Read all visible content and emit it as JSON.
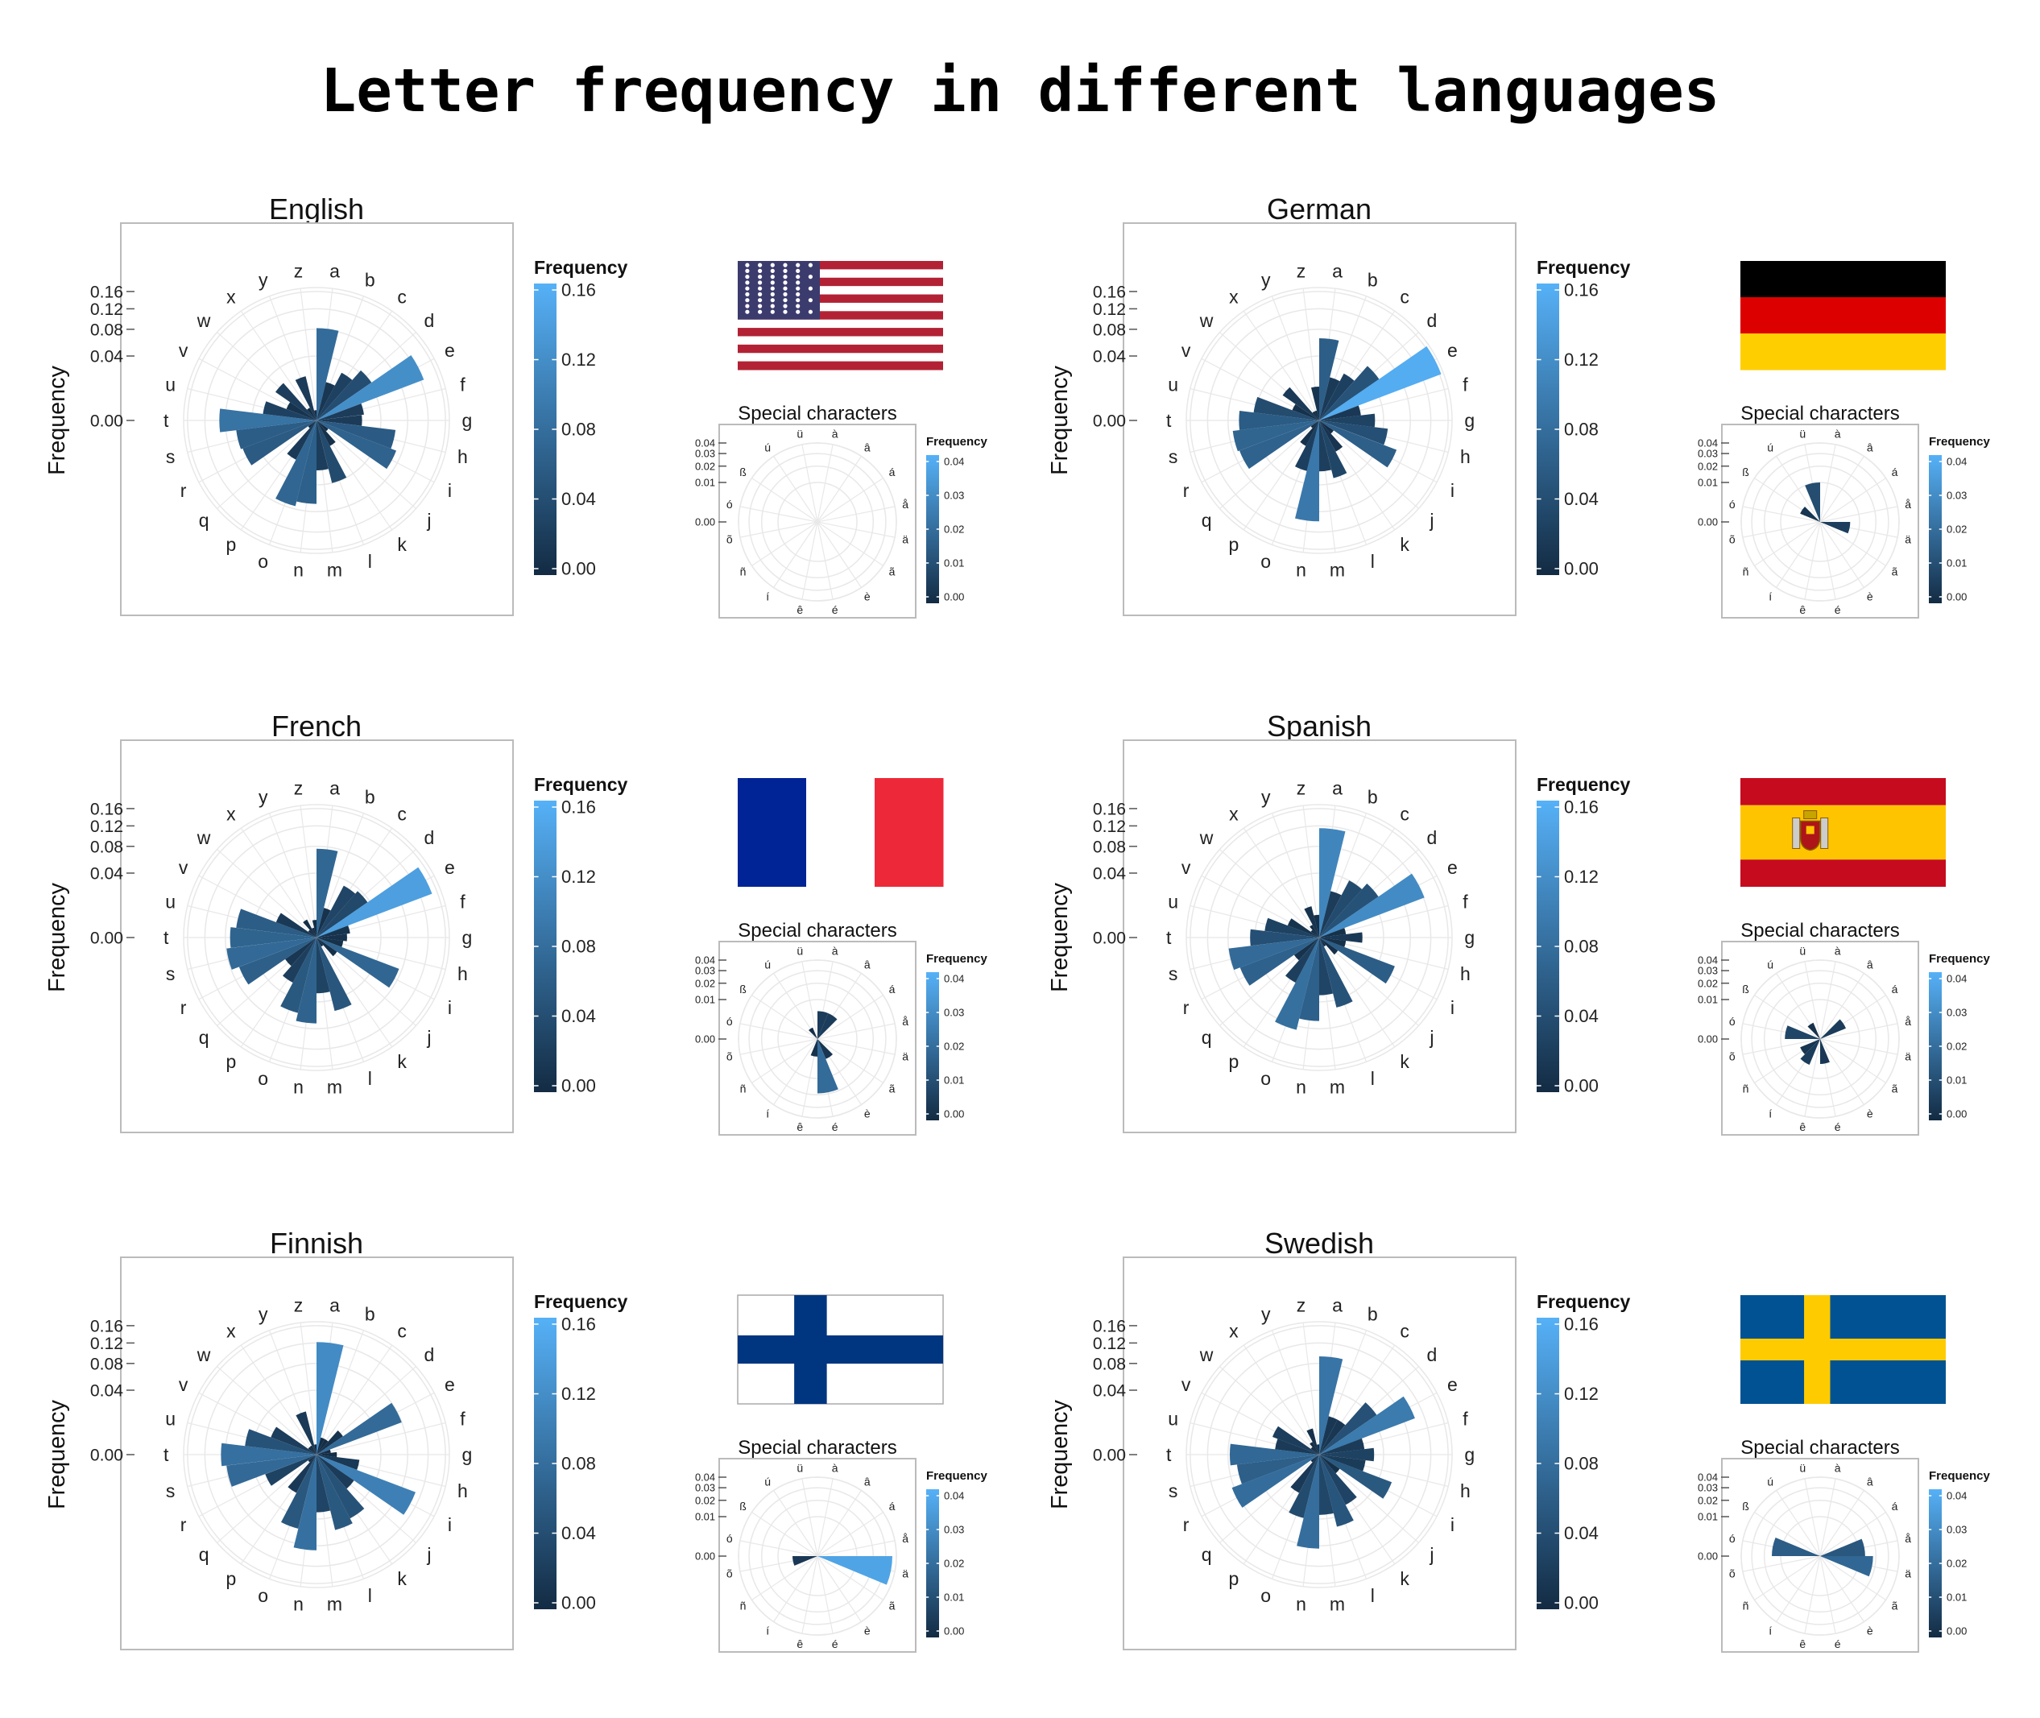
{
  "title": "Letter frequency in different languages",
  "letters": [
    "a",
    "b",
    "c",
    "d",
    "e",
    "f",
    "g",
    "h",
    "i",
    "j",
    "k",
    "l",
    "m",
    "n",
    "o",
    "p",
    "q",
    "r",
    "s",
    "t",
    "u",
    "v",
    "w",
    "x",
    "y",
    "z"
  ],
  "special_letters": [
    "à",
    "â",
    "á",
    "å",
    "ä",
    "ã",
    "è",
    "é",
    "ê",
    "í",
    "ñ",
    "õ",
    "ó",
    "ß",
    "ú",
    "ü"
  ],
  "labels": {
    "radial_axis": "Frequency",
    "legend_title": "Frequency",
    "special_title": "Special characters",
    "r_ticks": [
      "0.00",
      "0.04",
      "0.08",
      "0.12",
      "0.16"
    ],
    "legend_ticks": [
      "0.00",
      "0.04",
      "0.08",
      "0.12",
      "0.16"
    ],
    "special_r_ticks": [
      "0.00",
      "0.01",
      "0.02",
      "0.03",
      "0.04"
    ],
    "special_legend_ticks": [
      "0.00",
      "0.01",
      "0.02",
      "0.03",
      "0.04"
    ]
  },
  "colors": {
    "low": "#132B43",
    "high": "#56B1F7",
    "grid": "#e8e8e8",
    "panel_border": "#bbbbbb"
  },
  "chart_data": [
    {
      "type": "polar-bar",
      "language": "English",
      "flag": "usa-flag",
      "ylim": [
        0,
        0.17
      ],
      "letters": [
        0.082,
        0.015,
        0.028,
        0.043,
        0.127,
        0.022,
        0.02,
        0.061,
        0.07,
        0.002,
        0.008,
        0.04,
        0.024,
        0.067,
        0.075,
        0.019,
        0.001,
        0.06,
        0.063,
        0.091,
        0.028,
        0.01,
        0.024,
        0.002,
        0.02,
        0.001
      ],
      "special": [
        0,
        0,
        0,
        0,
        0,
        0,
        0,
        0,
        0,
        0,
        0,
        0,
        0,
        0,
        0,
        0
      ]
    },
    {
      "type": "polar-bar",
      "language": "German",
      "flag": "germany-flag",
      "ylim": [
        0,
        0.17
      ],
      "letters": [
        0.065,
        0.019,
        0.027,
        0.051,
        0.164,
        0.017,
        0.03,
        0.046,
        0.066,
        0.003,
        0.012,
        0.034,
        0.025,
        0.098,
        0.026,
        0.008,
        0.001,
        0.07,
        0.073,
        0.062,
        0.042,
        0.008,
        0.019,
        0.001,
        0.001,
        0.011
      ],
      "special": [
        0,
        0,
        0,
        0,
        0.0058,
        0,
        0,
        0,
        0,
        0,
        0,
        0,
        0,
        0.003,
        0,
        0.01
      ]
    },
    {
      "type": "polar-bar",
      "language": "French",
      "flag": "france-flag",
      "ylim": [
        0,
        0.17
      ],
      "letters": [
        0.076,
        0.009,
        0.033,
        0.037,
        0.147,
        0.011,
        0.009,
        0.007,
        0.075,
        0.006,
        0.001,
        0.055,
        0.03,
        0.071,
        0.058,
        0.025,
        0.014,
        0.066,
        0.079,
        0.072,
        0.063,
        0.018,
        0.001,
        0.004,
        0.001,
        0.003
      ],
      "special": [
        0.005,
        0.005,
        0,
        0,
        0,
        0,
        0.003,
        0.019,
        0.002,
        0,
        0,
        0,
        0,
        0,
        0.001,
        0
      ]
    },
    {
      "type": "polar-bar",
      "language": "Spanish",
      "flag": "spain-flag",
      "ylim": [
        0,
        0.17
      ],
      "letters": [
        0.115,
        0.022,
        0.04,
        0.05,
        0.122,
        0.007,
        0.018,
        0.007,
        0.063,
        0.005,
        0.001,
        0.05,
        0.032,
        0.067,
        0.087,
        0.025,
        0.009,
        0.069,
        0.08,
        0.046,
        0.029,
        0.011,
        0.001,
        0.002,
        0.01,
        0.005
      ],
      "special": [
        0,
        0,
        0.005,
        0,
        0,
        0,
        0,
        0.004,
        0,
        0.005,
        0.003,
        0,
        0.008,
        0,
        0.002,
        0
      ]
    },
    {
      "type": "polar-bar",
      "language": "Finnish",
      "flag": "finland-flag",
      "ylim": [
        0,
        0.17
      ],
      "letters": [
        0.122,
        0.003,
        0.003,
        0.01,
        0.08,
        0.002,
        0.004,
        0.018,
        0.108,
        0.02,
        0.05,
        0.058,
        0.032,
        0.088,
        0.056,
        0.018,
        0.001,
        0.029,
        0.079,
        0.088,
        0.05,
        0.023,
        0.001,
        0.001,
        0.019,
        0.001
      ],
      "special": [
        0,
        0,
        0,
        0,
        0.036,
        0,
        0,
        0,
        0,
        0,
        0,
        0.004,
        0,
        0,
        0,
        0
      ]
    },
    {
      "type": "polar-bar",
      "language": "Swedish",
      "flag": "sweden-flag",
      "ylim": [
        0,
        0.17
      ],
      "letters": [
        0.093,
        0.015,
        0.015,
        0.047,
        0.101,
        0.02,
        0.029,
        0.021,
        0.058,
        0.006,
        0.031,
        0.053,
        0.035,
        0.085,
        0.041,
        0.018,
        0.001,
        0.084,
        0.066,
        0.077,
        0.019,
        0.024,
        0.001,
        0.002,
        0.007,
        0.001
      ],
      "special": [
        0,
        0,
        0,
        0.013,
        0.018,
        0,
        0,
        0,
        0,
        0,
        0,
        0,
        0.015,
        0,
        0,
        0
      ]
    }
  ]
}
